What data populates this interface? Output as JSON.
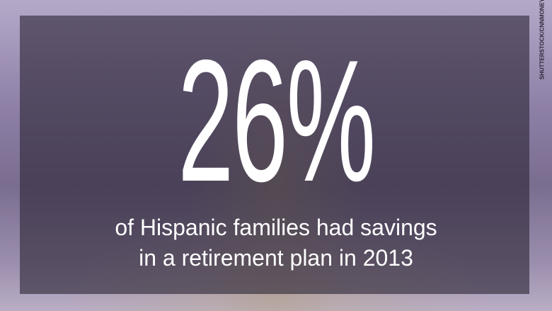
{
  "headline": "26%",
  "caption": [
    "of Hispanic families had savings",
    "in a retirement plan in 2013"
  ],
  "credit": "SHUTTERSTOCK/CNNMONEY"
}
